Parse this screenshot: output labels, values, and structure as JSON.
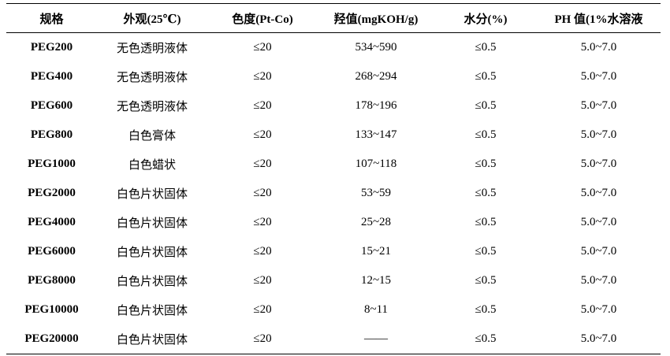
{
  "table": {
    "header": [
      "规格",
      "外观(25℃)",
      "色度(Pt-Co)",
      "羟值(mgKOH/g)",
      "水分(%)",
      "PH 值(1%水溶液"
    ],
    "rows": [
      [
        "PEG200",
        "无色透明液体",
        "≤20",
        "534~590",
        "≤0.5",
        "5.0~7.0"
      ],
      [
        "PEG400",
        "无色透明液体",
        "≤20",
        "268~294",
        "≤0.5",
        "5.0~7.0"
      ],
      [
        "PEG600",
        "无色透明液体",
        "≤20",
        "178~196",
        "≤0.5",
        "5.0~7.0"
      ],
      [
        "PEG800",
        "白色膏体",
        "≤20",
        "133~147",
        "≤0.5",
        "5.0~7.0"
      ],
      [
        "PEG1000",
        "白色蜡状",
        "≤20",
        "107~118",
        "≤0.5",
        "5.0~7.0"
      ],
      [
        "PEG2000",
        "白色片状固体",
        "≤20",
        "53~59",
        "≤0.5",
        "5.0~7.0"
      ],
      [
        "PEG4000",
        "白色片状固体",
        "≤20",
        "25~28",
        "≤0.5",
        "5.0~7.0"
      ],
      [
        "PEG6000",
        "白色片状固体",
        "≤20",
        "15~21",
        "≤0.5",
        "5.0~7.0"
      ],
      [
        "PEG8000",
        "白色片状固体",
        "≤20",
        "12~15",
        "≤0.5",
        "5.0~7.0"
      ],
      [
        "PEG10000",
        "白色片状固体",
        "≤20",
        "8~11",
        "≤0.5",
        "5.0~7.0"
      ],
      [
        "PEG20000",
        "白色片状固体",
        "≤20",
        "——",
        "≤0.5",
        "5.0~7.0"
      ]
    ]
  }
}
